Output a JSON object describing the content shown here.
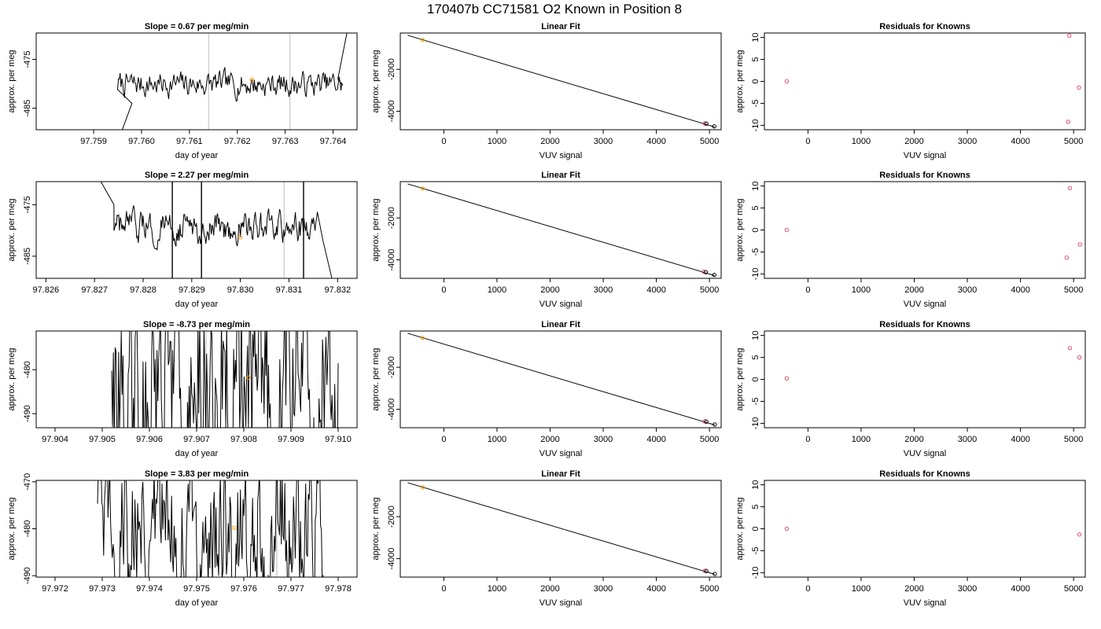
{
  "figure_title": "170407b      CC71581    O2 Known in Position  8",
  "colors": {
    "trace": "#000000",
    "marker_orange": "#FFA500",
    "marker_red": "#DF536B",
    "vline": "#BEBEBE"
  },
  "chart_data": [
    {
      "type": "line",
      "title": "Slope =  0.67  per meg/min",
      "xlabel": "day of year",
      "ylabel": "approx. per meg",
      "xlim": [
        97.7578,
        97.7645
      ],
      "ylim": [
        -489.4,
        -469.6
      ],
      "xticks": [
        97.759,
        97.76,
        97.761,
        97.762,
        97.763,
        97.764
      ],
      "xtick_labels": [
        "97.759",
        "97.760",
        "97.761",
        "97.762",
        "97.763",
        "97.764"
      ],
      "yticks": [
        -475,
        -485
      ],
      "ytick_labels": [
        "-475",
        "-485"
      ],
      "vlines": [
        97.7614,
        97.7631
      ],
      "trace_start": 97.7595,
      "trace_end": 97.7642,
      "trace_mean": -480.1,
      "trace_amp": 1.2,
      "trace_lead": [
        [
          97.7595,
          -492
        ],
        [
          97.7598,
          -484
        ]
      ],
      "trace_tail": [
        [
          97.7641,
          -479
        ],
        [
          97.7643,
          -469
        ]
      ],
      "marker": {
        "x": 97.7623,
        "y": -479.1
      }
    },
    {
      "type": "scatter",
      "title": "Linear Fit",
      "xlabel": "VUV signal",
      "ylabel": "approx. per meg",
      "xlim": [
        -820,
        5220
      ],
      "ylim": [
        -4880,
        -270
      ],
      "xticks": [
        0,
        1000,
        2000,
        3000,
        4000,
        5000
      ],
      "xtick_labels": [
        "0",
        "1000",
        "2000",
        "3000",
        "4000",
        "5000"
      ],
      "yticks": [
        -2000,
        -4000
      ],
      "ytick_labels": [
        "-2000",
        "-4000"
      ],
      "line": [
        [
          -680,
          -380
        ],
        [
          5100,
          -4750
        ]
      ],
      "points": [
        {
          "x": -400,
          "y": -600,
          "c": "orange"
        },
        {
          "x": 4910,
          "y": -4580,
          "c": "red"
        },
        {
          "x": 4940,
          "y": -4590,
          "c": "black"
        },
        {
          "x": 5090,
          "y": -4720,
          "c": "black"
        }
      ]
    },
    {
      "type": "scatter",
      "title": "Residuals for Knowns",
      "xlabel": "VUV signal",
      "ylabel": "approx. per meg",
      "xlim": [
        -820,
        5220
      ],
      "ylim": [
        -11,
        11
      ],
      "xticks": [
        0,
        1000,
        2000,
        3000,
        4000,
        5000
      ],
      "xtick_labels": [
        "0",
        "1000",
        "2000",
        "3000",
        "4000",
        "5000"
      ],
      "yticks": [
        10,
        5,
        0,
        -5,
        -10
      ],
      "ytick_labels": [
        "10",
        "5",
        "0",
        "-5",
        "-10"
      ],
      "points": [
        {
          "x": -400,
          "y": 0,
          "c": "red"
        },
        {
          "x": 4920,
          "y": 10.4,
          "c": "red"
        },
        {
          "x": 4900,
          "y": -9.2,
          "c": "red"
        },
        {
          "x": 5100,
          "y": -1.4,
          "c": "red"
        }
      ]
    },
    {
      "type": "line",
      "title": "Slope =  2.27  per meg/min",
      "xlabel": "day of year",
      "ylabel": "approx. per meg",
      "xlim": [
        97.8258,
        97.8324
      ],
      "ylim": [
        -489.3,
        -470.5
      ],
      "xticks": [
        97.826,
        97.827,
        97.828,
        97.829,
        97.83,
        97.831,
        97.832
      ],
      "xtick_labels": [
        "97.826",
        "97.827",
        "97.828",
        "97.829",
        "97.830",
        "97.831",
        "97.832"
      ],
      "yticks": [
        -475,
        -485
      ],
      "ytick_labels": [
        "-475",
        "-485"
      ],
      "vlines": [
        97.8292,
        97.8309
      ],
      "trace_start": 97.8274,
      "trace_end": 97.8316,
      "trace_mean": -479.5,
      "trace_amp": 1.4,
      "trace_lead": [
        [
          97.8271,
          -470
        ],
        [
          97.8274,
          -475
        ]
      ],
      "trace_tail": [
        [
          97.8317,
          -482
        ],
        [
          97.8319,
          -490
        ]
      ],
      "spikes": [
        [
          97.8286,
          -495,
          -468
        ],
        [
          97.8292,
          -495,
          -468
        ],
        [
          97.8313,
          -495,
          -468
        ]
      ],
      "marker": {
        "x": 97.83,
        "y": -481.3
      }
    },
    {
      "type": "scatter",
      "title": "Linear Fit",
      "xlabel": "VUV signal",
      "ylabel": "approx. per meg",
      "xlim": [
        -820,
        5220
      ],
      "ylim": [
        -4880,
        -270
      ],
      "xticks": [
        0,
        1000,
        2000,
        3000,
        4000,
        5000
      ],
      "xtick_labels": [
        "0",
        "1000",
        "2000",
        "3000",
        "4000",
        "5000"
      ],
      "yticks": [
        -2000,
        -4000
      ],
      "ytick_labels": [
        "-2000",
        "-4000"
      ],
      "line": [
        [
          -680,
          -380
        ],
        [
          5100,
          -4750
        ]
      ],
      "points": [
        {
          "x": -400,
          "y": -600,
          "c": "orange"
        },
        {
          "x": 4890,
          "y": -4560,
          "c": "red"
        },
        {
          "x": 4930,
          "y": -4590,
          "c": "black"
        },
        {
          "x": 5090,
          "y": -4720,
          "c": "black"
        }
      ]
    },
    {
      "type": "scatter",
      "title": "Residuals for Knowns",
      "xlabel": "VUV signal",
      "ylabel": "approx. per meg",
      "xlim": [
        -820,
        5220
      ],
      "ylim": [
        -11,
        11
      ],
      "xticks": [
        0,
        1000,
        2000,
        3000,
        4000,
        5000
      ],
      "xtick_labels": [
        "0",
        "1000",
        "2000",
        "3000",
        "4000",
        "5000"
      ],
      "yticks": [
        10,
        5,
        0,
        -5,
        -10
      ],
      "ytick_labels": [
        "10",
        "5",
        "0",
        "-5",
        "-10"
      ],
      "points": [
        {
          "x": -400,
          "y": 0,
          "c": "red"
        },
        {
          "x": 4930,
          "y": 9.5,
          "c": "red"
        },
        {
          "x": 4870,
          "y": -6.3,
          "c": "red"
        },
        {
          "x": 5120,
          "y": -3.3,
          "c": "red"
        }
      ]
    },
    {
      "type": "line",
      "title": "Slope =  -8.73  per meg/min",
      "xlabel": "day of year",
      "ylabel": "approx. per meg",
      "xlim": [
        97.9036,
        97.9104
      ],
      "ylim": [
        -493.2,
        -471.2
      ],
      "xticks": [
        97.904,
        97.905,
        97.906,
        97.907,
        97.908,
        97.909,
        97.91
      ],
      "xtick_labels": [
        "97.904",
        "97.905",
        "97.906",
        "97.907",
        "97.908",
        "97.909",
        "97.910"
      ],
      "yticks": [
        -480,
        -490
      ],
      "ytick_labels": [
        "-480",
        "-490"
      ],
      "vlines": [
        97.9072
      ],
      "trace_start": 97.9052,
      "trace_end": 97.91,
      "trace_mean": -482,
      "trace_amp": 12,
      "marker": {
        "x": 97.9081,
        "y": -481.8
      }
    },
    {
      "type": "scatter",
      "title": "Linear Fit",
      "xlabel": "VUV signal",
      "ylabel": "approx. per meg",
      "xlim": [
        -820,
        5220
      ],
      "ylim": [
        -4880,
        -270
      ],
      "xticks": [
        0,
        1000,
        2000,
        3000,
        4000,
        5000
      ],
      "xtick_labels": [
        "0",
        "1000",
        "2000",
        "3000",
        "4000",
        "5000"
      ],
      "yticks": [
        -2000,
        -4000
      ],
      "ytick_labels": [
        "-2000",
        "-4000"
      ],
      "line": [
        [
          -680,
          -380
        ],
        [
          5100,
          -4750
        ]
      ],
      "points": [
        {
          "x": -400,
          "y": -600,
          "c": "orange"
        },
        {
          "x": 4910,
          "y": -4580,
          "c": "red"
        },
        {
          "x": 4940,
          "y": -4590,
          "c": "black"
        },
        {
          "x": 5100,
          "y": -4730,
          "c": "black"
        }
      ]
    },
    {
      "type": "scatter",
      "title": "Residuals for Knowns",
      "xlabel": "VUV signal",
      "ylabel": "approx. per meg",
      "xlim": [
        -820,
        5220
      ],
      "ylim": [
        -11,
        11
      ],
      "xticks": [
        0,
        1000,
        2000,
        3000,
        4000,
        5000
      ],
      "xtick_labels": [
        "0",
        "1000",
        "2000",
        "3000",
        "4000",
        "5000"
      ],
      "yticks": [
        10,
        5,
        0,
        -5,
        -10
      ],
      "ytick_labels": [
        "10",
        "5",
        "0",
        "-5",
        "-10"
      ],
      "points": [
        {
          "x": -400,
          "y": 0.2,
          "c": "red"
        },
        {
          "x": 4930,
          "y": 7.1,
          "c": "red"
        },
        {
          "x": 5110,
          "y": 5.0,
          "c": "red"
        }
      ]
    },
    {
      "type": "line",
      "title": "Slope =  3.83  per meg/min",
      "xlabel": "day of year",
      "ylabel": "approx. per meg",
      "xlim": [
        97.9716,
        97.9784
      ],
      "ylim": [
        -490.3,
        -469.7
      ],
      "xticks": [
        97.972,
        97.973,
        97.974,
        97.975,
        97.976,
        97.977,
        97.978
      ],
      "xtick_labels": [
        "97.972",
        "97.973",
        "97.974",
        "97.975",
        "97.976",
        "97.977",
        "97.978"
      ],
      "yticks": [
        -470,
        -480,
        -490
      ],
      "ytick_labels": [
        "-470",
        "-480",
        "-490"
      ],
      "vlines": [
        97.9767
      ],
      "trace_start": 97.9729,
      "trace_end": 97.9777,
      "trace_mean": -480,
      "trace_amp": 8,
      "marker": {
        "x": 97.9758,
        "y": -479.8
      }
    },
    {
      "type": "scatter",
      "title": "Linear Fit",
      "xlabel": "VUV signal",
      "ylabel": "approx. per meg",
      "xlim": [
        -820,
        5220
      ],
      "ylim": [
        -4880,
        -270
      ],
      "xticks": [
        0,
        1000,
        2000,
        3000,
        4000,
        5000
      ],
      "xtick_labels": [
        "0",
        "1000",
        "2000",
        "3000",
        "4000",
        "5000"
      ],
      "yticks": [
        -2000,
        -4000
      ],
      "ytick_labels": [
        "-2000",
        "-4000"
      ],
      "line": [
        [
          -680,
          -380
        ],
        [
          5100,
          -4750
        ]
      ],
      "points": [
        {
          "x": -400,
          "y": -600,
          "c": "orange"
        },
        {
          "x": 4910,
          "y": -4580,
          "c": "red"
        },
        {
          "x": 4940,
          "y": -4590,
          "c": "black"
        },
        {
          "x": 5100,
          "y": -4730,
          "c": "black"
        }
      ]
    },
    {
      "type": "scatter",
      "title": "Residuals for Knowns",
      "xlabel": "VUV signal",
      "ylabel": "approx. per meg",
      "xlim": [
        -820,
        5220
      ],
      "ylim": [
        -11,
        11
      ],
      "xticks": [
        0,
        1000,
        2000,
        3000,
        4000,
        5000
      ],
      "xtick_labels": [
        "0",
        "1000",
        "2000",
        "3000",
        "4000",
        "5000"
      ],
      "yticks": [
        10,
        5,
        0,
        -5,
        -10
      ],
      "ytick_labels": [
        "10",
        "5",
        "0",
        "-5",
        "-10"
      ],
      "points": [
        {
          "x": -400,
          "y": 0,
          "c": "red"
        },
        {
          "x": 5110,
          "y": -1.3,
          "c": "red"
        }
      ]
    }
  ]
}
